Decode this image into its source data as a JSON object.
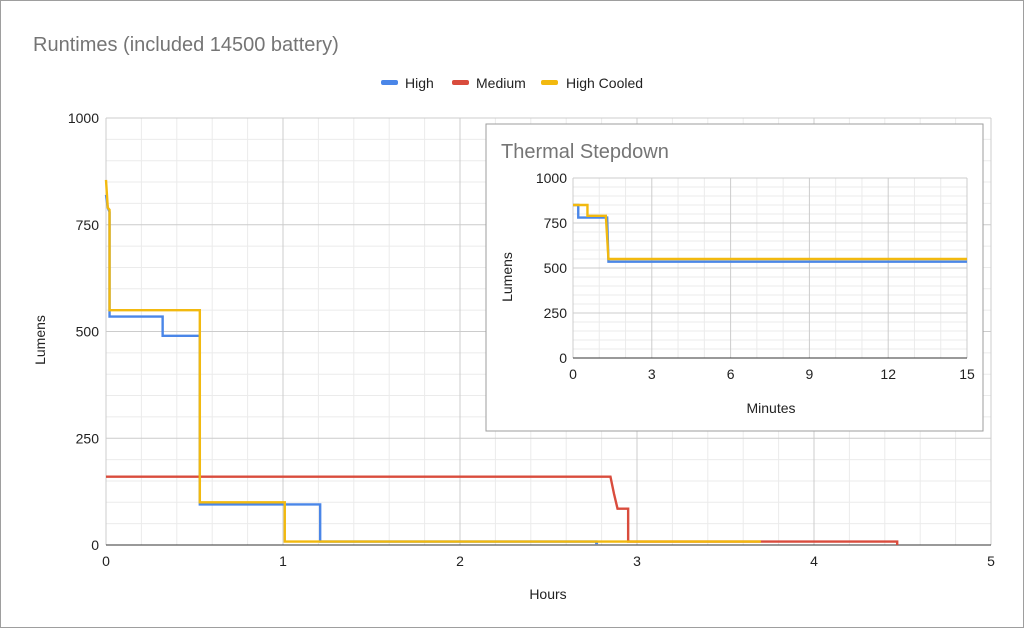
{
  "colors": {
    "high": "#4a86e8",
    "medium": "#d94c3d",
    "high_cooled": "#f2b90f",
    "title": "#757575",
    "grid_major": "#cccccc",
    "grid_minor": "#ebebeb",
    "axis_text": "#222222"
  },
  "chart_data": [
    {
      "id": "main",
      "type": "line",
      "title": "Runtimes (included 14500 battery)",
      "xlabel": "Hours",
      "ylabel": "Lumens",
      "xlim": [
        0,
        5
      ],
      "ylim": [
        0,
        1000
      ],
      "xticks": [
        0,
        1,
        2,
        3,
        4,
        5
      ],
      "yticks": [
        0,
        250,
        500,
        750,
        1000
      ],
      "grid": true,
      "legend_position": "top",
      "series": [
        {
          "name": "High",
          "color_key": "high",
          "points": [
            [
              0,
              820
            ],
            [
              0.01,
              790
            ],
            [
              0.02,
              780
            ],
            [
              0.02,
              535
            ],
            [
              0.32,
              535
            ],
            [
              0.32,
              490
            ],
            [
              0.53,
              490
            ],
            [
              0.53,
              95
            ],
            [
              1.21,
              95
            ],
            [
              1.21,
              8
            ],
            [
              2.77,
              8
            ],
            [
              2.77,
              5
            ],
            [
              2.78,
              5
            ]
          ]
        },
        {
          "name": "Medium",
          "color_key": "medium",
          "points": [
            [
              0,
              160
            ],
            [
              2.85,
              160
            ],
            [
              2.87,
              120
            ],
            [
              2.89,
              85
            ],
            [
              2.95,
              85
            ],
            [
              2.95,
              8
            ],
            [
              4.47,
              8
            ],
            [
              4.47,
              0
            ]
          ]
        },
        {
          "name": "High Cooled",
          "color_key": "high_cooled",
          "points": [
            [
              0,
              855
            ],
            [
              0.01,
              790
            ],
            [
              0.02,
              785
            ],
            [
              0.02,
              550
            ],
            [
              0.53,
              550
            ],
            [
              0.53,
              100
            ],
            [
              1.01,
              100
            ],
            [
              1.01,
              8
            ],
            [
              3.7,
              8
            ]
          ]
        }
      ]
    },
    {
      "id": "inset",
      "type": "line",
      "title": "Thermal Stepdown",
      "xlabel": "Minutes",
      "ylabel": "Lumens",
      "xlim": [
        0,
        15
      ],
      "ylim": [
        0,
        1000
      ],
      "xticks": [
        0,
        3,
        6,
        9,
        12,
        15
      ],
      "yticks": [
        0,
        250,
        500,
        750,
        1000
      ],
      "grid": true,
      "series": [
        {
          "name": "High",
          "color_key": "high",
          "points": [
            [
              0,
              850
            ],
            [
              0.2,
              850
            ],
            [
              0.2,
              780
            ],
            [
              1.3,
              780
            ],
            [
              1.35,
              535
            ],
            [
              15,
              535
            ]
          ]
        },
        {
          "name": "High Cooled",
          "color_key": "high_cooled",
          "points": [
            [
              0,
              850
            ],
            [
              0.55,
              850
            ],
            [
              0.55,
              790
            ],
            [
              1.25,
              790
            ],
            [
              1.35,
              550
            ],
            [
              15,
              550
            ]
          ]
        }
      ]
    }
  ]
}
